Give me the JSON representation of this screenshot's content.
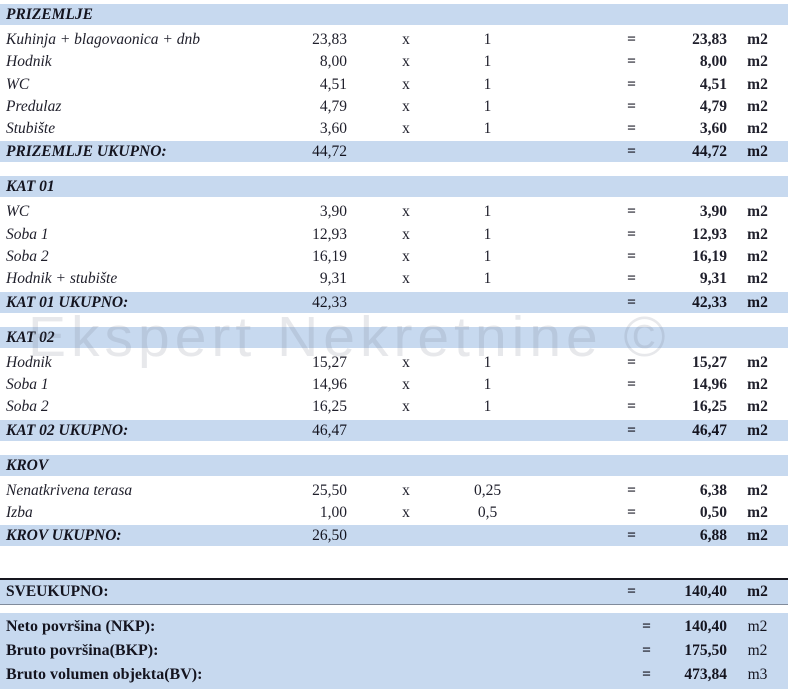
{
  "watermark": "Ekspert Nekretnine ©",
  "symbols": {
    "times": "x",
    "equals": "="
  },
  "colors": {
    "highlight_band": "#c7d9ef",
    "text": "#20202c",
    "watermark_gray": "#b9bec7"
  },
  "sections": [
    {
      "title": "PRIZEMLJE",
      "rows": [
        {
          "label": "Kuhinja + blagovaonica + dnb",
          "area": "23,83",
          "factor": "1",
          "result": "23,83",
          "unit": "m2"
        },
        {
          "label": "Hodnik",
          "area": "8,00",
          "factor": "1",
          "result": "8,00",
          "unit": "m2"
        },
        {
          "label": "WC",
          "area": "4,51",
          "factor": "1",
          "result": "4,51",
          "unit": "m2"
        },
        {
          "label": "Predulaz",
          "area": "4,79",
          "factor": "1",
          "result": "4,79",
          "unit": "m2"
        },
        {
          "label": "Stubište",
          "area": "3,60",
          "factor": "1",
          "result": "3,60",
          "unit": "m2"
        }
      ],
      "total": {
        "label": "PRIZEMLJE UKUPNO:",
        "area": "44,72",
        "result": "44,72",
        "unit": "m2"
      }
    },
    {
      "title": "KAT 01",
      "rows": [
        {
          "label": "WC",
          "area": "3,90",
          "factor": "1",
          "result": "3,90",
          "unit": "m2"
        },
        {
          "label": "Soba 1",
          "area": "12,93",
          "factor": "1",
          "result": "12,93",
          "unit": "m2"
        },
        {
          "label": "Soba 2",
          "area": "16,19",
          "factor": "1",
          "result": "16,19",
          "unit": "m2"
        },
        {
          "label": "Hodnik + stubište",
          "area": "9,31",
          "factor": "1",
          "result": "9,31",
          "unit": "m2"
        }
      ],
      "total": {
        "label": "KAT 01 UKUPNO:",
        "area": "42,33",
        "result": "42,33",
        "unit": "m2"
      }
    },
    {
      "title": "KAT 02",
      "rows": [
        {
          "label": "Hodnik",
          "area": "15,27",
          "factor": "1",
          "result": "15,27",
          "unit": "m2"
        },
        {
          "label": "Soba 1",
          "area": "14,96",
          "factor": "1",
          "result": "14,96",
          "unit": "m2"
        },
        {
          "label": "Soba 2",
          "area": "16,25",
          "factor": "1",
          "result": "16,25",
          "unit": "m2"
        }
      ],
      "total": {
        "label": "KAT 02 UKUPNO:",
        "area": "46,47",
        "result": "46,47",
        "unit": "m2"
      }
    },
    {
      "title": "KROV",
      "rows": [
        {
          "label": "Nenatkrivena terasa",
          "area": "25,50",
          "factor": "0,25",
          "result": "6,38",
          "unit": "m2"
        },
        {
          "label": "Izba",
          "area": "1,00",
          "factor": "0,5",
          "result": "0,50",
          "unit": "m2"
        }
      ],
      "total": {
        "label": "KROV UKUPNO:",
        "area": "26,50",
        "result": "6,88",
        "unit": "m2"
      }
    }
  ],
  "grand_total": {
    "label": "SVEUKUPNO:",
    "result": "140,40",
    "unit": "m2"
  },
  "summary": [
    {
      "label": "Neto površina (NKP):",
      "value": "140,40",
      "unit": "m2"
    },
    {
      "label": "Bruto površina(BKP):",
      "value": "175,50",
      "unit": "m2"
    },
    {
      "label": "Bruto volumen objekta(BV):",
      "value": "473,84",
      "unit": "m3"
    }
  ]
}
